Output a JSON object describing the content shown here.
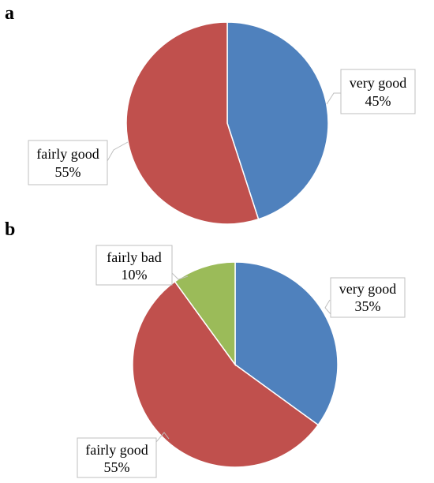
{
  "chart_data": [
    {
      "type": "pie",
      "panel": "a",
      "title": "",
      "slices": [
        {
          "label": "very good",
          "value": 45,
          "value_text": "45%",
          "color": "#4f81bd"
        },
        {
          "label": "fairly good",
          "value": 55,
          "value_text": "55%",
          "color": "#c0504d"
        }
      ],
      "start_angle_deg": 0,
      "direction": "clockwise"
    },
    {
      "type": "pie",
      "panel": "b",
      "title": "",
      "slices": [
        {
          "label": "very good",
          "value": 35,
          "value_text": "35%",
          "color": "#4f81bd"
        },
        {
          "label": "fairly good",
          "value": 55,
          "value_text": "55%",
          "color": "#c0504d"
        },
        {
          "label": "fairly bad",
          "value": 10,
          "value_text": "10%",
          "color": "#9bbb59"
        }
      ],
      "start_angle_deg": 0,
      "direction": "clockwise"
    }
  ]
}
